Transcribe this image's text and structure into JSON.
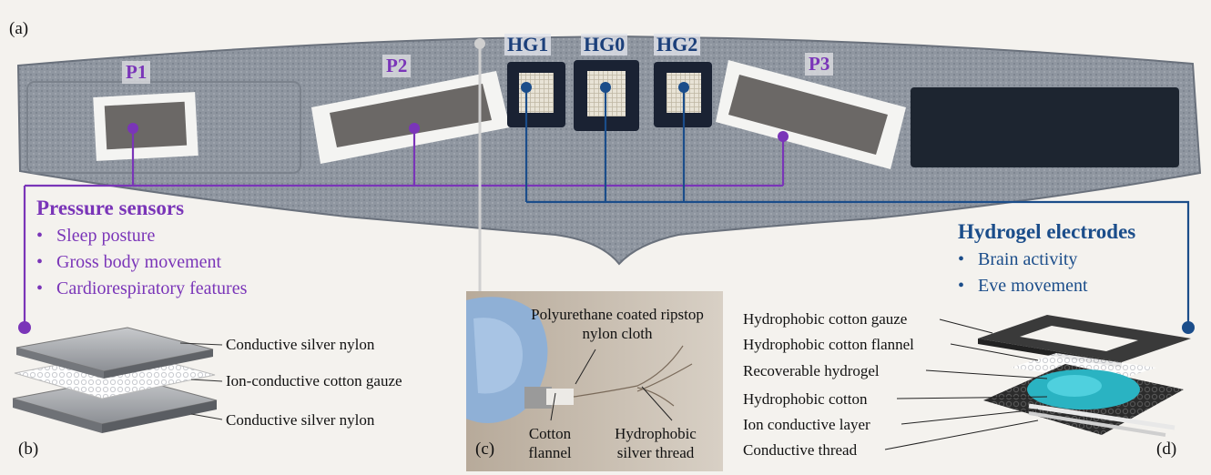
{
  "panels": {
    "a": "(a)",
    "b": "(b)",
    "c": "(c)",
    "d": "(d)"
  },
  "sensors": {
    "p1": "P1",
    "p2": "P2",
    "p3": "P3"
  },
  "electrodes": {
    "hg1": "HG1",
    "hg0": "HG0",
    "hg2": "HG2"
  },
  "pressure": {
    "heading": "Pressure sensors",
    "bullets": [
      "Sleep posture",
      "Gross body movement",
      "Cardiorespiratory features"
    ]
  },
  "hydrogel": {
    "heading": "Hydrogel electrodes",
    "bullets": [
      "Brain activity",
      "Eve movement"
    ]
  },
  "panel_b_layers": [
    "Conductive silver nylon",
    "Ion-conductive cotton gauze",
    "Conductive silver nylon"
  ],
  "panel_c_labels": {
    "cloth": "Polyurethane coated ripstop nylon cloth",
    "flannel": "Cotton flannel",
    "thread": "Hydrophobic silver thread"
  },
  "panel_d_layers": [
    "Hydrophobic cotton gauze",
    "Hydrophobic cotton flannel",
    "Recoverable hydrogel",
    "Hydrophobic cotton",
    "Ion conductive layer",
    "Conductive thread"
  ],
  "colors": {
    "pressure": "#7a35b8",
    "hydrogel": "#1b4d8a",
    "mask_fabric": "#8a929c",
    "connector": "#c8c8c8"
  }
}
